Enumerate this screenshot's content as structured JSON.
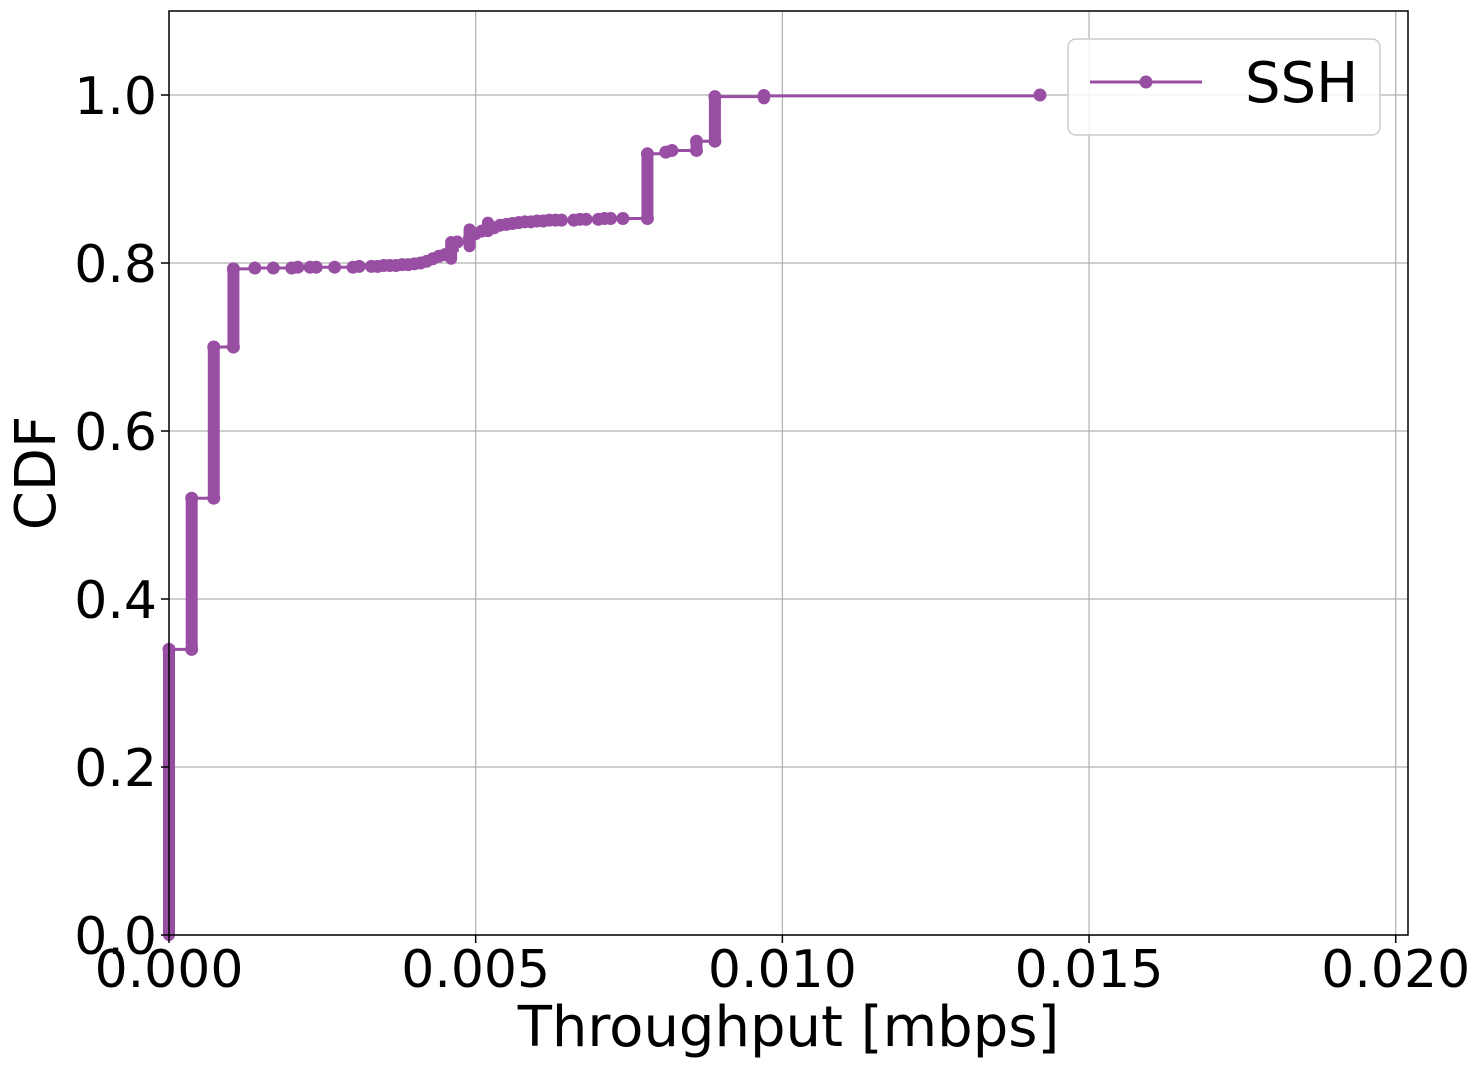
{
  "chart_data": {
    "type": "line",
    "title": "",
    "xlabel": "Throughput [mbps]",
    "ylabel": "CDF",
    "xlim": [
      0.0,
      0.0202
    ],
    "ylim": [
      0.0,
      1.1
    ],
    "xticks": [
      "0.000",
      "0.005",
      "0.010",
      "0.015",
      "0.020"
    ],
    "xtick_values": [
      0.0,
      0.005,
      0.01,
      0.015,
      0.02
    ],
    "yticks": [
      "0.0",
      "0.2",
      "0.4",
      "0.6",
      "0.8",
      "1.0"
    ],
    "ytick_values": [
      0.0,
      0.2,
      0.4,
      0.6,
      0.8,
      1.0
    ],
    "grid": true,
    "legend_position": "top-right",
    "series": [
      {
        "name": "SSH",
        "color": "#984ea3",
        "marker": "circle",
        "step": true,
        "x": [
          0.0,
          0.0,
          0.00037,
          0.00037,
          0.00073,
          0.00073,
          0.00105,
          0.00105,
          0.0014,
          0.0017,
          0.002,
          0.0021,
          0.0023,
          0.0024,
          0.0027,
          0.003,
          0.0031,
          0.0033,
          0.0034,
          0.0035,
          0.0036,
          0.0037,
          0.0038,
          0.0039,
          0.004,
          0.0041,
          0.0042,
          0.0043,
          0.0044,
          0.0045,
          0.0046,
          0.0047,
          0.0049,
          0.005,
          0.0051,
          0.0052,
          0.0053,
          0.0054,
          0.0055,
          0.0056,
          0.0057,
          0.0058,
          0.0059,
          0.006,
          0.0061,
          0.0062,
          0.0063,
          0.0064,
          0.0066,
          0.0067,
          0.0068,
          0.007,
          0.0071,
          0.0072,
          0.0074,
          0.0078,
          0.0078,
          0.0081,
          0.0082,
          0.0086,
          0.0086,
          0.0089,
          0.0089,
          0.0097,
          0.0142
        ],
        "y": [
          0.0,
          0.34,
          0.34,
          0.52,
          0.52,
          0.7,
          0.7,
          0.793,
          0.794,
          0.794,
          0.794,
          0.795,
          0.795,
          0.795,
          0.795,
          0.795,
          0.796,
          0.796,
          0.796,
          0.797,
          0.797,
          0.797,
          0.798,
          0.798,
          0.799,
          0.8,
          0.802,
          0.805,
          0.808,
          0.81,
          0.815,
          0.825,
          0.83,
          0.835,
          0.838,
          0.84,
          0.842,
          0.845,
          0.846,
          0.847,
          0.848,
          0.849,
          0.849,
          0.85,
          0.85,
          0.851,
          0.851,
          0.851,
          0.851,
          0.852,
          0.852,
          0.852,
          0.853,
          0.853,
          0.853,
          0.853,
          0.93,
          0.932,
          0.934,
          0.934,
          0.945,
          0.945,
          0.998,
          0.999,
          1.0
        ]
      }
    ],
    "vertical_runs": [
      {
        "x": 0.0,
        "y0": 0.0,
        "y1": 0.34
      },
      {
        "x": 0.00037,
        "y0": 0.34,
        "y1": 0.52
      },
      {
        "x": 0.00073,
        "y0": 0.52,
        "y1": 0.7
      },
      {
        "x": 0.00105,
        "y0": 0.7,
        "y1": 0.793
      },
      {
        "x": 0.0046,
        "y0": 0.805,
        "y1": 0.825
      },
      {
        "x": 0.0049,
        "y0": 0.82,
        "y1": 0.84
      },
      {
        "x": 0.0052,
        "y0": 0.838,
        "y1": 0.848
      },
      {
        "x": 0.0078,
        "y0": 0.853,
        "y1": 0.93
      },
      {
        "x": 0.0086,
        "y0": 0.934,
        "y1": 0.945
      },
      {
        "x": 0.0089,
        "y0": 0.945,
        "y1": 0.998
      },
      {
        "x": 0.0097,
        "y0": 0.996,
        "y1": 1.0
      }
    ]
  }
}
